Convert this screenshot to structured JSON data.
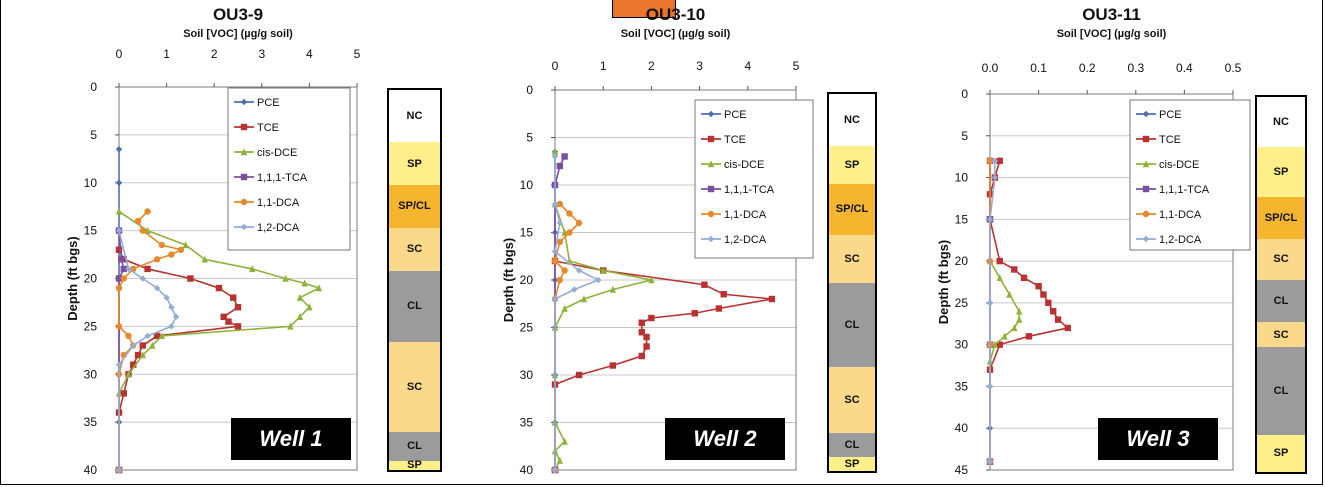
{
  "panels": [
    {
      "title": "OU3-9",
      "well_label": "Well 1",
      "strat": [
        {
          "label": "NC",
          "top": 0,
          "bottom": 5.5
        },
        {
          "label": "SP",
          "top": 5.5,
          "bottom": 10
        },
        {
          "label": "SP/CL",
          "top": 10,
          "bottom": 14.5
        },
        {
          "label": "SC",
          "top": 14.5,
          "bottom": 19
        },
        {
          "label": "CL",
          "top": 19,
          "bottom": 26.5
        },
        {
          "label": "SC",
          "top": 26.5,
          "bottom": 36
        },
        {
          "label": "CL",
          "top": 36,
          "bottom": 39
        },
        {
          "label": "SP",
          "top": 39,
          "bottom": 40
        }
      ]
    },
    {
      "title": "OU3-10",
      "well_label": "Well 2",
      "strat": [
        {
          "label": "NC",
          "top": 0,
          "bottom": 5.5
        },
        {
          "label": "SP",
          "top": 5.5,
          "bottom": 9.5
        },
        {
          "label": "SP/CL",
          "top": 9.5,
          "bottom": 15
        },
        {
          "label": "SC",
          "top": 15,
          "bottom": 20
        },
        {
          "label": "CL",
          "top": 20,
          "bottom": 29
        },
        {
          "label": "SC",
          "top": 29,
          "bottom": 36
        },
        {
          "label": "CL",
          "top": 36,
          "bottom": 38.5
        },
        {
          "label": "SP",
          "top": 38.5,
          "bottom": 40
        }
      ]
    },
    {
      "title": "OU3-11",
      "well_label": "Well 3",
      "strat": [
        {
          "label": "NC",
          "top": 0,
          "bottom": 6
        },
        {
          "label": "SP",
          "top": 6,
          "bottom": 12
        },
        {
          "label": "SP/CL",
          "top": 12,
          "bottom": 17
        },
        {
          "label": "SC",
          "top": 17,
          "bottom": 22
        },
        {
          "label": "CL",
          "top": 22,
          "bottom": 27
        },
        {
          "label": "SC",
          "top": 27,
          "bottom": 30
        },
        {
          "label": "CL",
          "top": 30,
          "bottom": 40.5
        },
        {
          "label": "SP",
          "top": 40.5,
          "bottom": 45
        }
      ]
    }
  ],
  "colors": {
    "PCE": "#4f6fb0",
    "TCE": "#b83232",
    "cis-DCE": "#8fb23a",
    "1,1,1-TCA": "#7a4fa0",
    "1,1-DCA": "#e6892a",
    "1,2-DCA": "#94acd8",
    "NC": "#ffffff",
    "SP": "#fdf08a",
    "SP/CL": "#f5b52e",
    "SC": "#fbd98a",
    "CL": "#9b9b9b",
    "top_tab": "#e9762b"
  },
  "chart_data": [
    {
      "type": "line",
      "title": "OU3-9",
      "xlabel": "Soil [VOC] (µg/g soil)",
      "ylabel": "Depth (ft bgs)",
      "xlim": [
        0,
        5
      ],
      "ylim": [
        0,
        40
      ],
      "xticks": [
        "0",
        "1",
        "2",
        "3",
        "4",
        "5"
      ],
      "yticks": [
        "0",
        "5",
        "10",
        "15",
        "20",
        "25",
        "30",
        "35",
        "40"
      ],
      "grid": true,
      "legend": "top-right",
      "series": [
        {
          "name": "PCE",
          "points": [
            [
              0,
              6.5
            ],
            [
              0,
              10
            ],
            [
              0,
              15
            ],
            [
              0,
              20
            ],
            [
              0,
              25
            ],
            [
              0,
              30
            ],
            [
              0,
              35
            ],
            [
              0,
              40
            ]
          ]
        },
        {
          "name": "TCE",
          "points": [
            [
              0,
              17
            ],
            [
              0.1,
              18
            ],
            [
              0.6,
              19
            ],
            [
              1.5,
              20
            ],
            [
              2.1,
              21
            ],
            [
              2.4,
              22
            ],
            [
              2.5,
              23
            ],
            [
              2.2,
              24
            ],
            [
              2.3,
              24.5
            ],
            [
              2.5,
              25
            ],
            [
              0.8,
              26
            ],
            [
              0.5,
              27
            ],
            [
              0.4,
              28
            ],
            [
              0.3,
              29
            ],
            [
              0.2,
              30
            ],
            [
              0.1,
              32
            ],
            [
              0,
              34
            ],
            [
              0,
              40
            ]
          ]
        },
        {
          "name": "cis-DCE",
          "points": [
            [
              0,
              13
            ],
            [
              0.6,
              15
            ],
            [
              1.4,
              16.5
            ],
            [
              1.8,
              18
            ],
            [
              2.8,
              19
            ],
            [
              3.5,
              20
            ],
            [
              3.9,
              20.5
            ],
            [
              4.2,
              21
            ],
            [
              3.8,
              22
            ],
            [
              4.0,
              23
            ],
            [
              3.8,
              24
            ],
            [
              3.6,
              25
            ],
            [
              0.9,
              26
            ],
            [
              0.7,
              27
            ],
            [
              0.5,
              28
            ],
            [
              0.2,
              30
            ],
            [
              0,
              32
            ],
            [
              0,
              40
            ]
          ]
        },
        {
          "name": "1,1,1-TCA",
          "points": [
            [
              0,
              15
            ],
            [
              0.05,
              18
            ],
            [
              0.1,
              19
            ],
            [
              0,
              20
            ],
            [
              0,
              40
            ]
          ]
        },
        {
          "name": "1,1-DCA",
          "points": [
            [
              0.6,
              13
            ],
            [
              0.4,
              14
            ],
            [
              0.5,
              15
            ],
            [
              0.9,
              16.5
            ],
            [
              1.3,
              17
            ],
            [
              1.1,
              17.5
            ],
            [
              0.8,
              18
            ],
            [
              0.3,
              19
            ],
            [
              0.1,
              20
            ],
            [
              0,
              21
            ],
            [
              0,
              25
            ],
            [
              0.2,
              26
            ],
            [
              0.3,
              27
            ],
            [
              0.1,
              28
            ],
            [
              0,
              30
            ],
            [
              0,
              40
            ]
          ]
        },
        {
          "name": "1,2-DCA",
          "points": [
            [
              0,
              15
            ],
            [
              0.2,
              19
            ],
            [
              0.5,
              20
            ],
            [
              0.8,
              21
            ],
            [
              1.0,
              22
            ],
            [
              1.1,
              23
            ],
            [
              1.2,
              24
            ],
            [
              1.1,
              25
            ],
            [
              0.6,
              26
            ],
            [
              0.3,
              27
            ],
            [
              0,
              29
            ],
            [
              0,
              40
            ]
          ]
        }
      ]
    },
    {
      "type": "line",
      "title": "OU3-10",
      "xlabel": "Soil [VOC] (µg/g soil)",
      "ylabel": "Depth (ft bgs)",
      "xlim": [
        0,
        5
      ],
      "ylim": [
        0,
        40
      ],
      "xticks": [
        "0",
        "1",
        "2",
        "3",
        "4",
        "5"
      ],
      "yticks": [
        "0",
        "5",
        "10",
        "15",
        "20",
        "25",
        "30",
        "35",
        "40"
      ],
      "grid": true,
      "legend": "top-right",
      "series": [
        {
          "name": "PCE",
          "points": [
            [
              0,
              6.5
            ],
            [
              0,
              10
            ],
            [
              0,
              15
            ],
            [
              0,
              20
            ],
            [
              0,
              25
            ],
            [
              0,
              30
            ],
            [
              0,
              35
            ],
            [
              0,
              40
            ]
          ]
        },
        {
          "name": "TCE",
          "points": [
            [
              0,
              18
            ],
            [
              1.0,
              19
            ],
            [
              3.1,
              20.5
            ],
            [
              3.5,
              21.5
            ],
            [
              4.5,
              22
            ],
            [
              3.4,
              23
            ],
            [
              2.9,
              23.5
            ],
            [
              2.0,
              24
            ],
            [
              1.8,
              24.5
            ],
            [
              1.8,
              25.5
            ],
            [
              1.9,
              26
            ],
            [
              1.9,
              27
            ],
            [
              1.8,
              28
            ],
            [
              1.2,
              29
            ],
            [
              0.5,
              30
            ],
            [
              0,
              31
            ],
            [
              0,
              40
            ]
          ]
        },
        {
          "name": "cis-DCE",
          "points": [
            [
              0,
              6.5
            ],
            [
              0,
              12
            ],
            [
              0.2,
              15
            ],
            [
              0.3,
              18
            ],
            [
              1.0,
              19
            ],
            [
              2.0,
              20
            ],
            [
              1.2,
              21
            ],
            [
              0.6,
              22
            ],
            [
              0.2,
              23
            ],
            [
              0,
              25
            ],
            [
              0,
              30
            ],
            [
              0,
              35
            ],
            [
              0.2,
              37
            ],
            [
              0,
              38
            ],
            [
              0.1,
              39
            ],
            [
              0,
              40
            ]
          ]
        },
        {
          "name": "1,1,1-TCA",
          "points": [
            [
              0.2,
              7
            ],
            [
              0.1,
              8
            ],
            [
              0,
              10
            ],
            [
              0,
              40
            ]
          ]
        },
        {
          "name": "1,1-DCA",
          "points": [
            [
              0.1,
              12
            ],
            [
              0.3,
              13
            ],
            [
              0.5,
              14
            ],
            [
              0.3,
              15
            ],
            [
              0.1,
              16
            ],
            [
              0,
              18
            ],
            [
              0.2,
              19
            ],
            [
              0.1,
              20
            ],
            [
              0,
              22
            ],
            [
              0,
              40
            ]
          ]
        },
        {
          "name": "1,2-DCA",
          "points": [
            [
              0,
              7
            ],
            [
              0,
              12
            ],
            [
              0.1,
              14
            ],
            [
              0,
              17
            ],
            [
              0.5,
              19
            ],
            [
              0.9,
              20
            ],
            [
              0.4,
              21
            ],
            [
              0,
              22
            ],
            [
              0,
              40
            ]
          ]
        }
      ]
    },
    {
      "type": "line",
      "title": "OU3-11",
      "xlabel": "Soil [VOC] (µg/g soil)",
      "ylabel": "Depth (ft bgs)",
      "xlim": [
        0,
        0.5
      ],
      "ylim": [
        0,
        45
      ],
      "xticks": [
        "0.0",
        "0.1",
        "0.2",
        "0.3",
        "0.4",
        "0.5"
      ],
      "yticks": [
        "0",
        "5",
        "10",
        "15",
        "20",
        "25",
        "30",
        "35",
        "40",
        "45"
      ],
      "grid": true,
      "legend": "top-right",
      "series": [
        {
          "name": "PCE",
          "points": [
            [
              0,
              8
            ],
            [
              0,
              15
            ],
            [
              0,
              20
            ],
            [
              0,
              25
            ],
            [
              0,
              30
            ],
            [
              0,
              35
            ],
            [
              0,
              40
            ],
            [
              0,
              44
            ]
          ]
        },
        {
          "name": "TCE",
          "points": [
            [
              0.02,
              8
            ],
            [
              0.01,
              10
            ],
            [
              0,
              12
            ],
            [
              0,
              15
            ],
            [
              0.02,
              20
            ],
            [
              0.05,
              21
            ],
            [
              0.07,
              22
            ],
            [
              0.1,
              23
            ],
            [
              0.11,
              24
            ],
            [
              0.12,
              25
            ],
            [
              0.13,
              26
            ],
            [
              0.14,
              27
            ],
            [
              0.16,
              28
            ],
            [
              0.08,
              29
            ],
            [
              0.02,
              30
            ],
            [
              0,
              33
            ],
            [
              0,
              44
            ]
          ]
        },
        {
          "name": "cis-DCE",
          "points": [
            [
              0,
              20
            ],
            [
              0.02,
              22
            ],
            [
              0.04,
              24
            ],
            [
              0.06,
              26
            ],
            [
              0.06,
              27
            ],
            [
              0.05,
              28
            ],
            [
              0.03,
              29
            ],
            [
              0.01,
              30
            ],
            [
              0,
              32
            ],
            [
              0,
              44
            ]
          ]
        },
        {
          "name": "1,1,1-TCA",
          "points": [
            [
              0,
              8
            ],
            [
              0,
              15
            ],
            [
              0,
              30
            ],
            [
              0,
              44
            ]
          ]
        },
        {
          "name": "1,1-DCA",
          "points": [
            [
              0,
              8
            ],
            [
              0,
              20
            ],
            [
              0,
              30
            ],
            [
              0,
              44
            ]
          ]
        },
        {
          "name": "1,2-DCA",
          "points": [
            [
              0.01,
              8
            ],
            [
              0.01,
              10
            ],
            [
              0,
              15
            ],
            [
              0,
              25
            ],
            [
              0,
              35
            ],
            [
              0,
              44
            ]
          ]
        }
      ]
    }
  ]
}
